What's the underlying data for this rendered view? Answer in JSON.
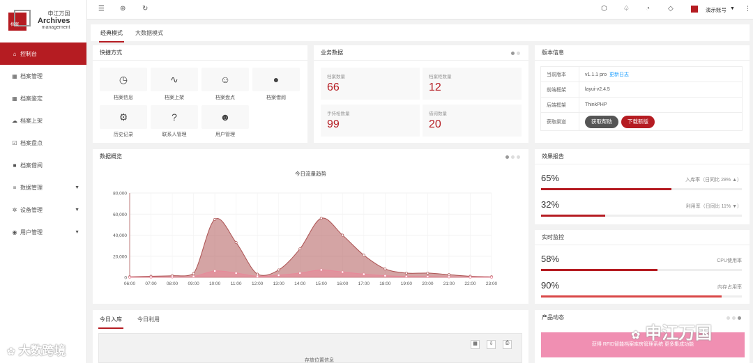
{
  "logo": {
    "cn": "申江万国",
    "en1": "Archives",
    "en2": "management",
    "seal": "档案"
  },
  "sidebar": {
    "items": [
      {
        "label": "控制台",
        "icon": "home-icon",
        "active": true
      },
      {
        "label": "档案管理",
        "icon": "grid-icon"
      },
      {
        "label": "档案鉴定",
        "icon": "grid-icon"
      },
      {
        "label": "档案上架",
        "icon": "cloud-upload-icon"
      },
      {
        "label": "档案盘点",
        "icon": "checkbox-icon"
      },
      {
        "label": "档案借阅",
        "icon": "truck-icon"
      },
      {
        "label": "数据管理",
        "icon": "database-icon",
        "arrow": true
      },
      {
        "label": "设备管理",
        "icon": "gear-icon",
        "arrow": true
      },
      {
        "label": "用户管理",
        "icon": "user-icon",
        "arrow": true
      }
    ]
  },
  "topbar": {
    "account": "演示账号"
  },
  "tabs": [
    "经典模式",
    "大数据模式"
  ],
  "quick": {
    "title": "快捷方式",
    "items": [
      {
        "label": "档案信息",
        "icon": "gauge-icon"
      },
      {
        "label": "档案上架",
        "icon": "pulse-icon"
      },
      {
        "label": "档案盘点",
        "icon": "smile-icon"
      },
      {
        "label": "档案借阅",
        "icon": "compass-icon"
      },
      {
        "label": "历史记录",
        "icon": "gear-icon"
      },
      {
        "label": "联系人管理",
        "icon": "help-icon"
      },
      {
        "label": "用户管理",
        "icon": "users-icon"
      }
    ]
  },
  "business": {
    "title": "业务数据",
    "items": [
      {
        "label": "档案数量",
        "value": "66"
      },
      {
        "label": "档案柜数量",
        "value": "12"
      },
      {
        "label": "手持枪数量",
        "value": "99"
      },
      {
        "label": "借阅数量",
        "value": "20"
      }
    ]
  },
  "version": {
    "title": "版本信息",
    "rows": [
      {
        "k": "当前版本",
        "v": "v1.1.1 pro",
        "link": "更新日志"
      },
      {
        "k": "前端框架",
        "v": "layui-v2.4.5"
      },
      {
        "k": "后端框架",
        "v": "ThinkPHP"
      },
      {
        "k": "获取渠道",
        "btn1": "获取帮助",
        "btn2": "下载新版"
      }
    ]
  },
  "overview": {
    "title": "数据概览"
  },
  "chart_data": {
    "type": "area",
    "title": "今日流量趋势",
    "xlabel": "",
    "ylabel": "",
    "ylim": [
      0,
      80000
    ],
    "yticks": [
      "0",
      "20,000",
      "40,000",
      "60,000",
      "80,000"
    ],
    "x": [
      "06:00",
      "07:00",
      "08:00",
      "09:00",
      "10:00",
      "11:00",
      "12:00",
      "13:00",
      "14:00",
      "15:00",
      "16:00",
      "17:00",
      "18:00",
      "19:00",
      "20:00",
      "21:00",
      "22:00",
      "23:00"
    ],
    "series": [
      {
        "values": [
          500,
          1000,
          1500,
          3500,
          55000,
          33000,
          3000,
          7000,
          27000,
          56000,
          40000,
          21000,
          8000,
          4000,
          4000,
          2500,
          1000,
          500
        ],
        "color": "#b05a5a"
      },
      {
        "values": [
          100,
          200,
          300,
          800,
          6000,
          4000,
          1000,
          2000,
          4000,
          7000,
          5000,
          3000,
          1500,
          800,
          600,
          400,
          200,
          100
        ],
        "color": "#e8899a"
      }
    ],
    "grid": true
  },
  "effect": {
    "title": "效果报告",
    "items": [
      {
        "pct": "65%",
        "cap": "入库率（日同比 28% ▲）",
        "value": 0.65
      },
      {
        "pct": "32%",
        "cap": "利用率（日同比 11% ▼）",
        "value": 0.32
      }
    ]
  },
  "monitor": {
    "title": "实时监控",
    "items": [
      {
        "pct": "58%",
        "cap": "CPU使用率",
        "value": 0.58
      },
      {
        "pct": "90%",
        "cap": "内存占用率",
        "value": 0.9
      }
    ]
  },
  "bottom": {
    "tabs": [
      "今日入库",
      "今日利用"
    ],
    "table_header": "存放位置信息"
  },
  "product": {
    "title": "产品动态",
    "banner": "获得 RFID智能档案库房管理系统 更多集成功能"
  },
  "watermarks": {
    "left": "大数跨境",
    "right": "申江万国"
  },
  "colors": {
    "accent": "#b51c22"
  }
}
